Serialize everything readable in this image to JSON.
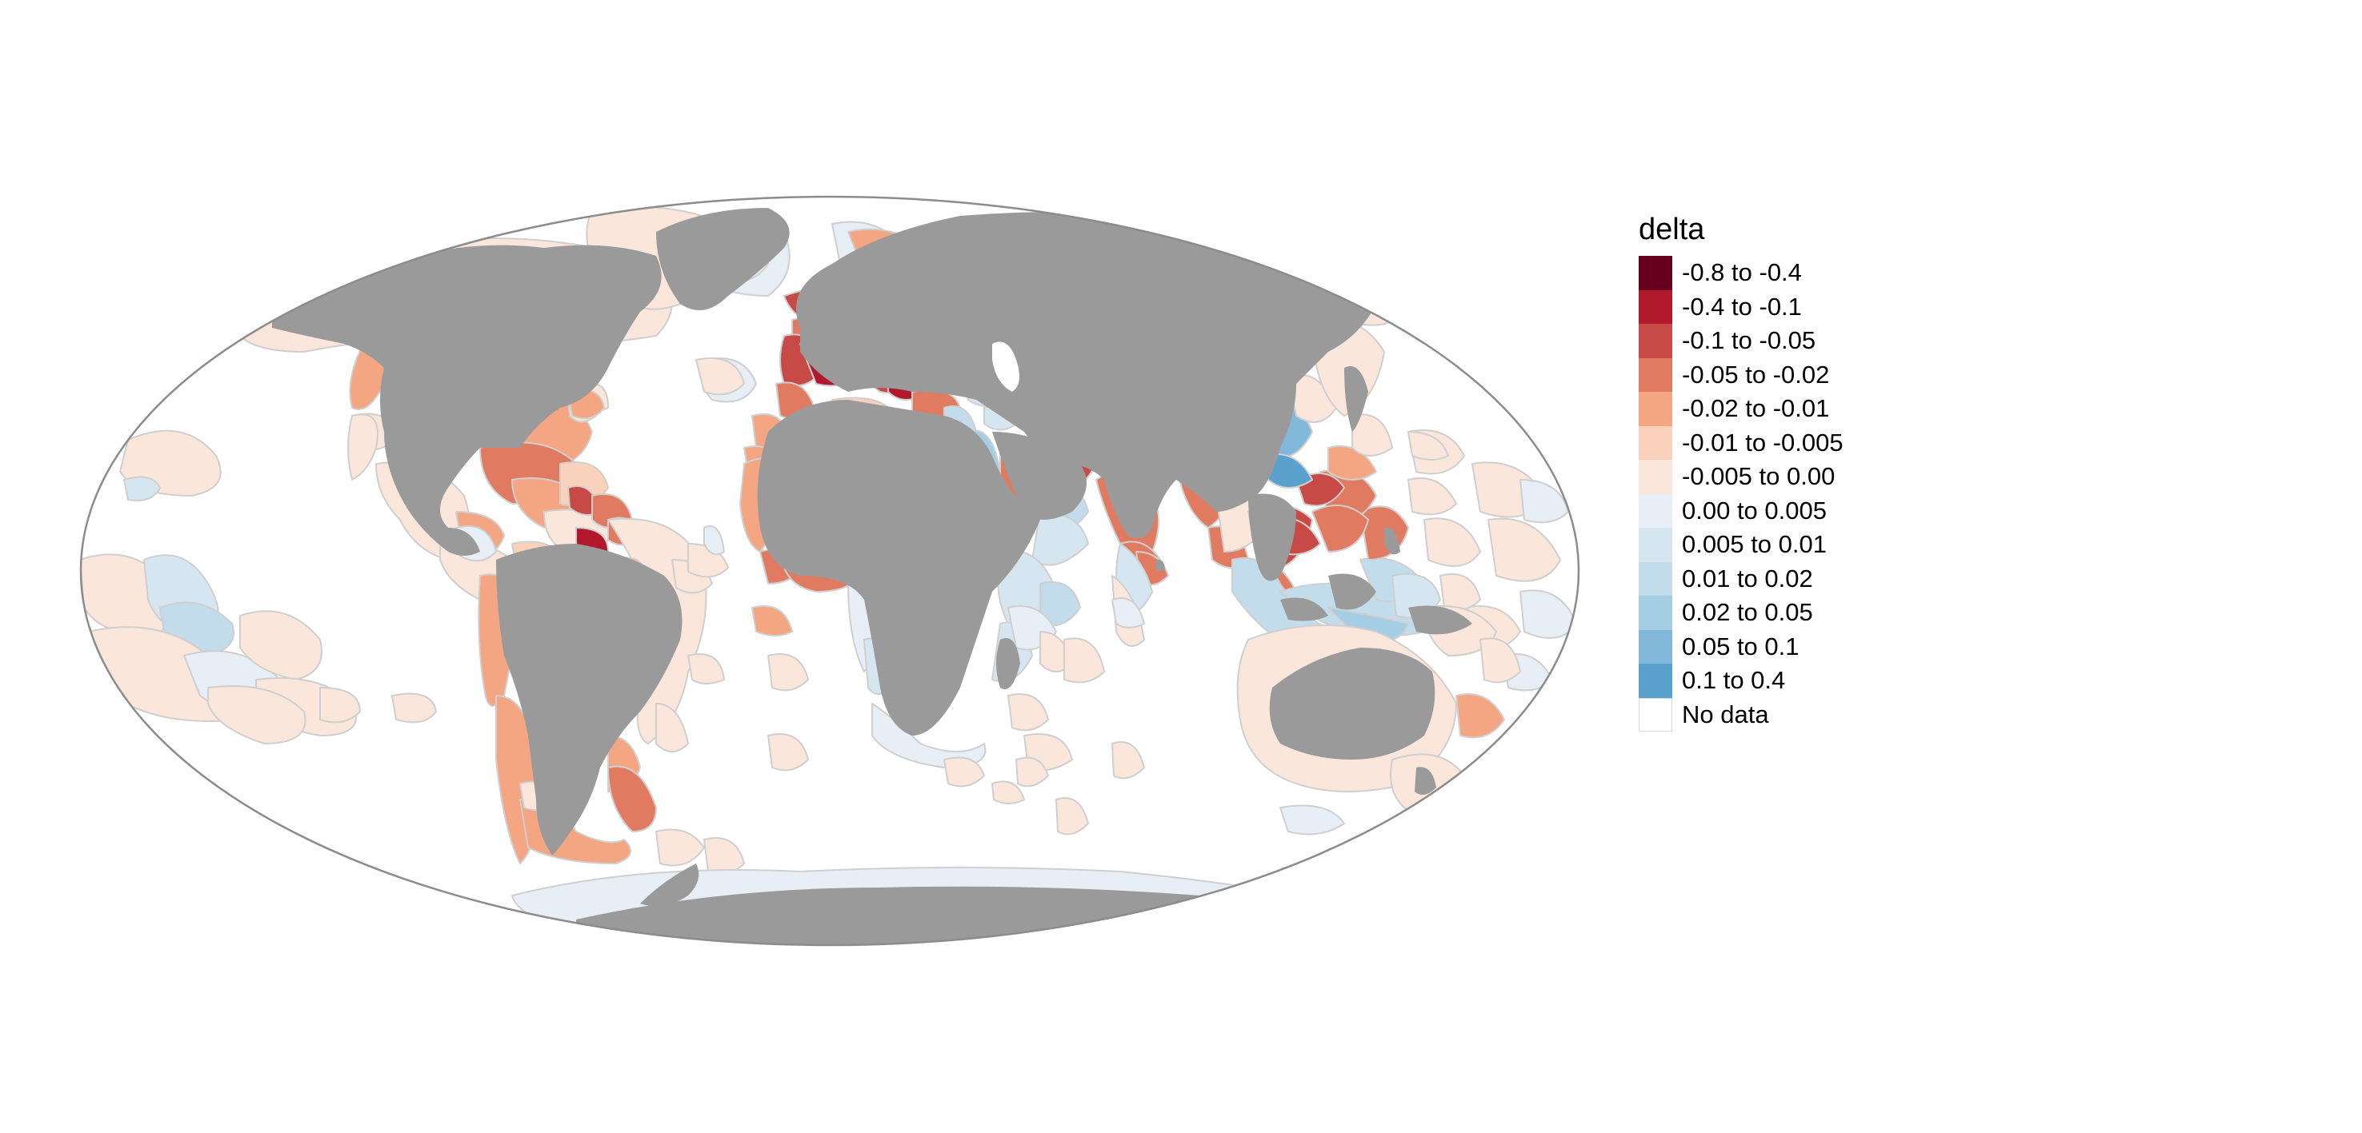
{
  "map": {
    "projection": "Mollweide",
    "land_color": "#9a9a9a",
    "ocean_color": "#ffffff",
    "outline_color": "#8c8c8c",
    "region_border_color": "#c8c8c8"
  },
  "legend": {
    "title": "delta",
    "items": [
      {
        "label": "-0.8 to -0.4",
        "color": "#67001f"
      },
      {
        "label": "-0.4 to -0.1",
        "color": "#b2182b"
      },
      {
        "label": "-0.1 to -0.05",
        "color": "#c84a47"
      },
      {
        "label": "-0.05 to -0.02",
        "color": "#e07b62"
      },
      {
        "label": "-0.02 to -0.01",
        "color": "#f4a582"
      },
      {
        "label": "-0.01 to -0.005",
        "color": "#fad1bb"
      },
      {
        "label": "-0.005 to 0.00",
        "color": "#fbe6dc"
      },
      {
        "label": "0.00 to 0.005",
        "color": "#e7eef5"
      },
      {
        "label": "0.005 to 0.01",
        "color": "#d6e6f1"
      },
      {
        "label": "0.01 to 0.02",
        "color": "#c2dcec"
      },
      {
        "label": "0.02 to 0.05",
        "color": "#a5cee5"
      },
      {
        "label": "0.05 to 0.1",
        "color": "#82b9db"
      },
      {
        "label": "0.1 to 0.4",
        "color": "#5aa1cd"
      },
      {
        "label": "No data",
        "color": "#ffffff"
      }
    ]
  }
}
